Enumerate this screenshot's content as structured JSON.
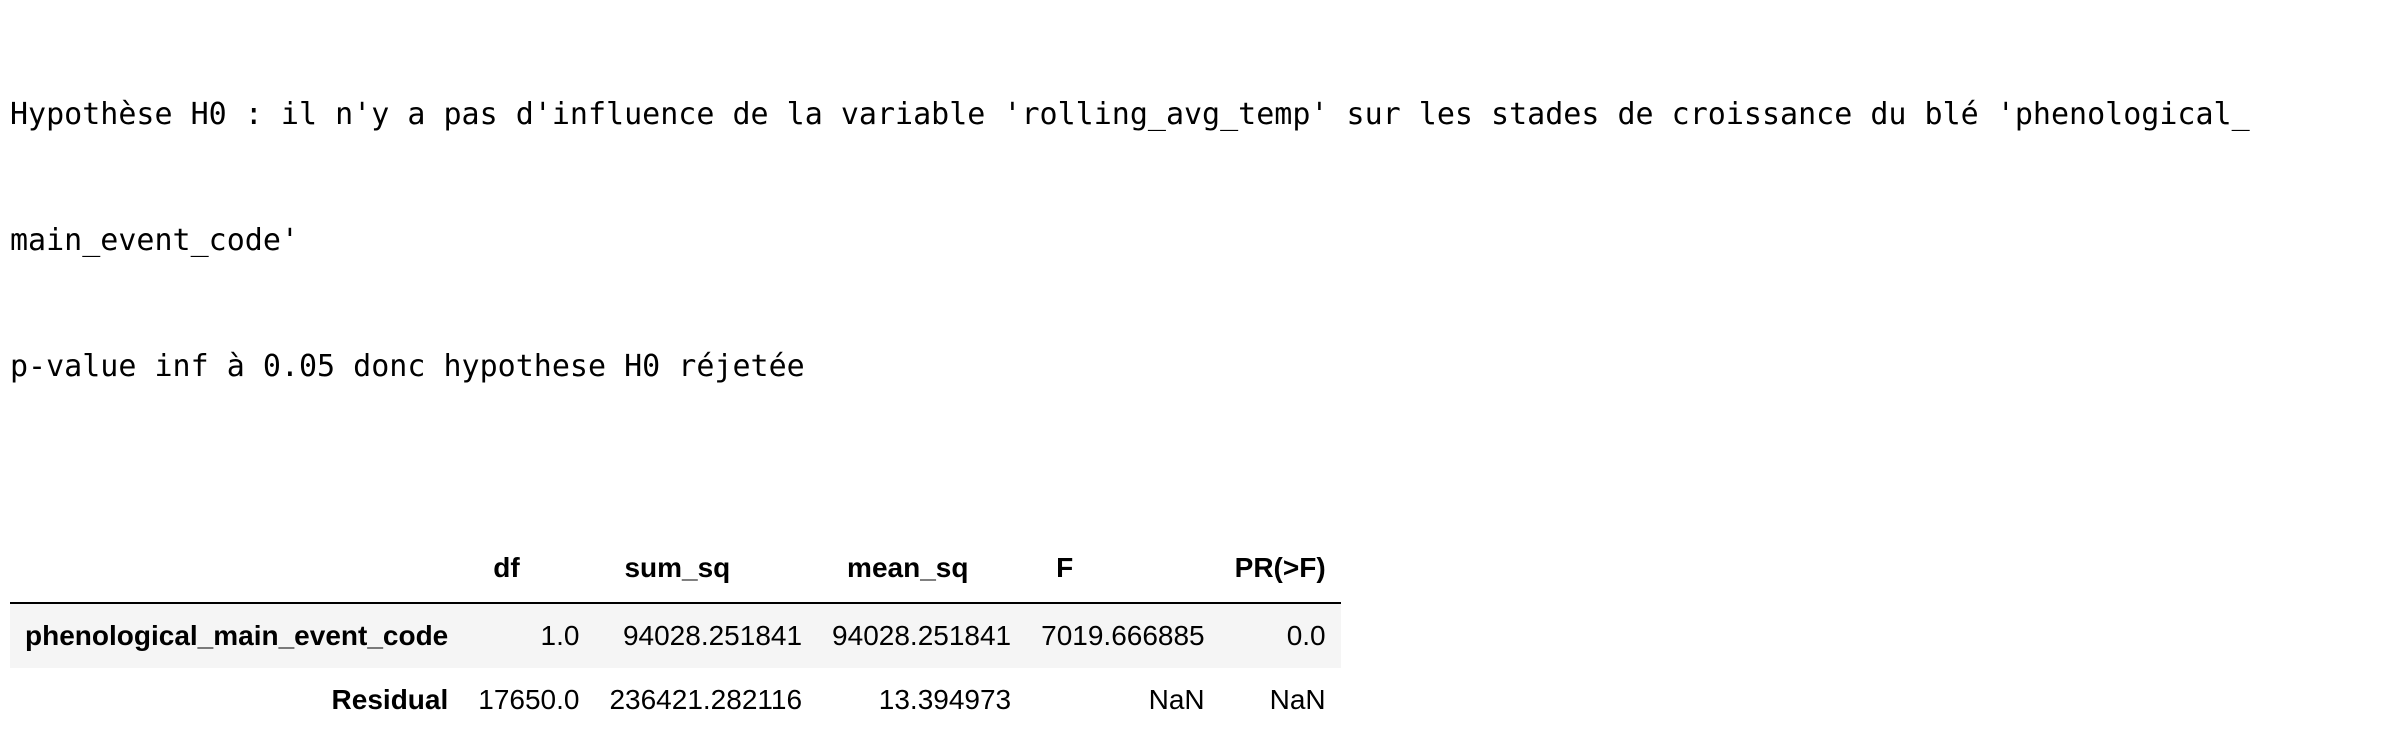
{
  "stdout": {
    "line1": "Hypothèse H0 : il n'y a pas d'influence de la variable 'rolling_avg_temp' sur les stades de croissance du blé 'phenological_",
    "line2": "main_event_code'",
    "line3": "p-value inf à 0.05 donc hypothese H0 réjetée"
  },
  "table": {
    "columns": [
      "df",
      "sum_sq",
      "mean_sq",
      "F",
      "PR(>F)"
    ],
    "rows": [
      {
        "index": "phenological_main_event_code",
        "values": [
          "1.0",
          "94028.251841",
          "94028.251841",
          "7019.666885",
          "0.0"
        ]
      },
      {
        "index": "Residual",
        "values": [
          "17650.0",
          "236421.282116",
          "13.394973",
          "NaN",
          "NaN"
        ]
      }
    ]
  }
}
